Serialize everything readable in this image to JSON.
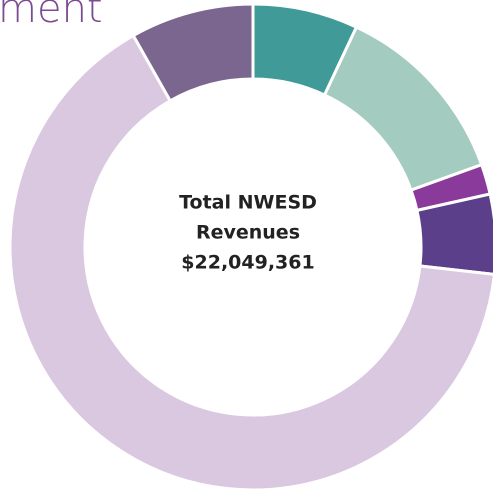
{
  "chart_data": {
    "type": "donut",
    "title": "ment",
    "values": [
      7,
      12.5,
      2,
      5.3,
      65,
      8.2
    ],
    "colors": [
      "#3f9a98",
      "#a3cbc0",
      "#8a3a9a",
      "#5c3f8a",
      "#d9c8e0",
      "#7b6690"
    ],
    "center_text": [
      "Total NWESD",
      "Revenues",
      "$22,049,361"
    ]
  }
}
